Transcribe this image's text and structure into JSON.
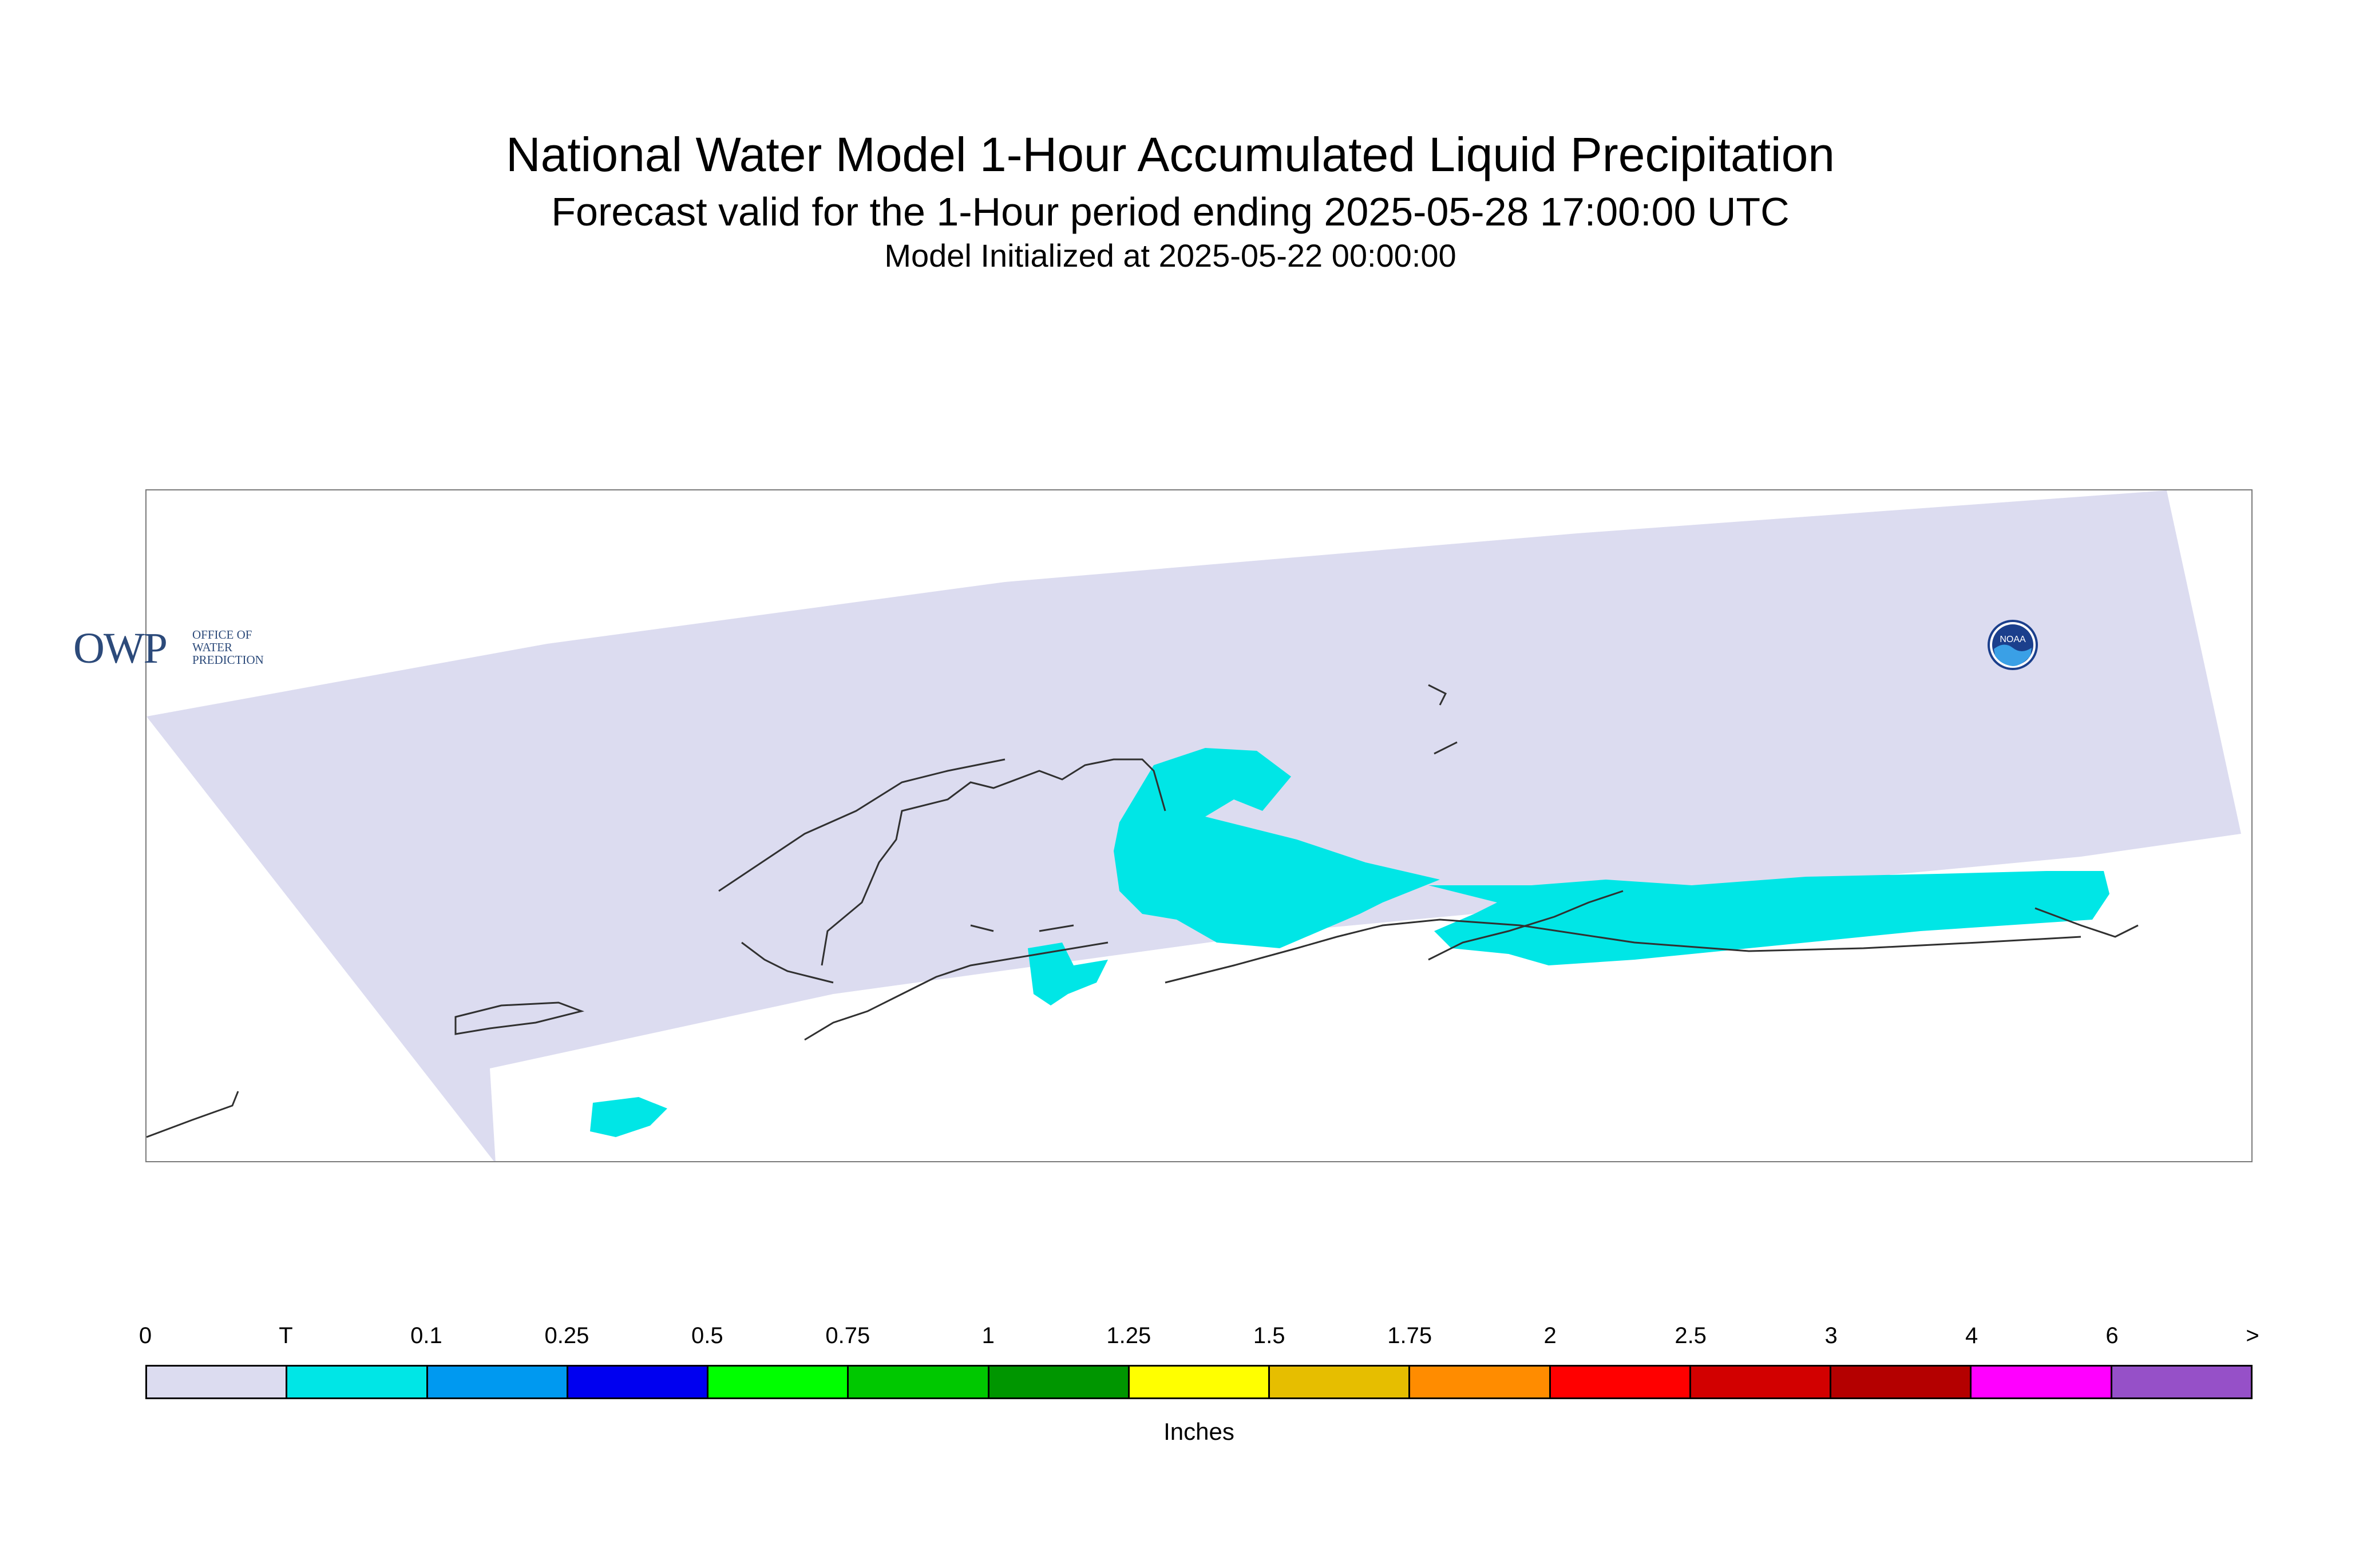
{
  "header": {
    "title": "National Water Model 1-Hour Accumulated Liquid Precipitation",
    "subtitle": "Forecast valid for the 1-Hour period ending 2025-05-28 17:00:00 UTC",
    "initialized": "Model Initialized at 2025-05-22 00:00:00"
  },
  "logos": {
    "owp_big": "OWP",
    "owp_line1": "OFFICE OF",
    "owp_line2": "WATER",
    "owp_line3": "PREDICTION",
    "noaa_text": "NOAA"
  },
  "colors": {
    "domain_fill": "#dcdcf0",
    "precip_trace": "#00e6e6",
    "coastline": "#303030"
  },
  "legend": {
    "labels": [
      "0",
      "T",
      "0.1",
      "0.25",
      "0.5",
      "0.75",
      "1",
      "1.25",
      "1.5",
      "1.75",
      "2",
      "2.5",
      "3",
      "4",
      "6",
      ">"
    ],
    "colors": [
      "#dcdcf0",
      "#00e6e6",
      "#0099f0",
      "#0000f0",
      "#00ff00",
      "#00c800",
      "#009600",
      "#ffff00",
      "#e6be00",
      "#ff8c00",
      "#ff0000",
      "#d20000",
      "#b40000",
      "#ff00ff",
      "#9650c8"
    ],
    "units": "Inches"
  }
}
